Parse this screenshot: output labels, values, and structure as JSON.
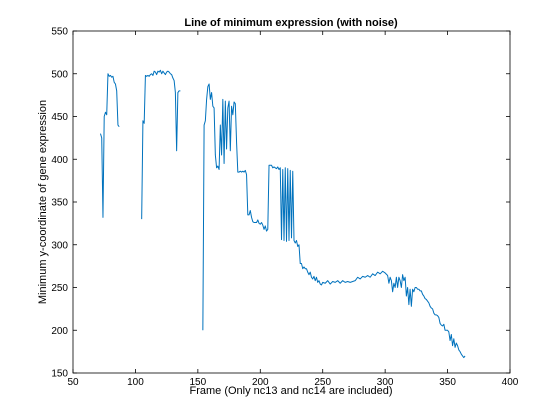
{
  "chart_data": {
    "type": "line",
    "title": "Line of minimum expression (with noise)",
    "xlabel": "Frame (Only nc13 and nc14 are included)",
    "ylabel": "Minimum y-coordinate of gene expression",
    "xlim": [
      50,
      400
    ],
    "ylim": [
      150,
      550
    ],
    "xticks": [
      50,
      100,
      150,
      200,
      250,
      300,
      350,
      400
    ],
    "yticks": [
      150,
      200,
      250,
      300,
      350,
      400,
      450,
      500,
      550
    ],
    "grid": false,
    "line_color": "#0072BD",
    "series": [
      {
        "segments": [
          [
            [
              72,
              430
            ],
            [
              73,
              425
            ],
            [
              74,
              332
            ],
            [
              75,
              450
            ],
            [
              76,
              455
            ],
            [
              77,
              452
            ],
            [
              78,
              500
            ],
            [
              79,
              497
            ],
            [
              80,
              498
            ],
            [
              81,
              496
            ],
            [
              82,
              497
            ],
            [
              83,
              490
            ],
            [
              84,
              488
            ],
            [
              85,
              480
            ],
            [
              86,
              440
            ],
            [
              87,
              438
            ]
          ],
          [
            [
              105,
              330
            ],
            [
              106,
              445
            ],
            [
              107,
              442
            ],
            [
              108,
              498
            ],
            [
              109,
              497
            ],
            [
              110,
              498
            ],
            [
              111,
              497
            ],
            [
              112,
              499
            ],
            [
              113,
              500
            ],
            [
              114,
              498
            ],
            [
              115,
              503
            ],
            [
              116,
              502
            ],
            [
              117,
              499
            ],
            [
              118,
              503
            ],
            [
              119,
              502
            ],
            [
              120,
              504
            ],
            [
              121,
              500
            ],
            [
              122,
              503
            ],
            [
              123,
              501
            ],
            [
              124,
              499
            ],
            [
              125,
              502
            ],
            [
              126,
              503
            ],
            [
              127,
              502
            ],
            [
              128,
              500
            ],
            [
              129,
              499
            ],
            [
              130,
              495
            ],
            [
              131,
              492
            ],
            [
              132,
              478
            ],
            [
              133,
              410
            ],
            [
              134,
              478
            ],
            [
              135,
              480
            ],
            [
              136,
              480
            ]
          ],
          [
            [
              154,
              200
            ],
            [
              155,
              440
            ],
            [
              156,
              445
            ],
            [
              157,
              470
            ],
            [
              158,
              485
            ],
            [
              159,
              488
            ],
            [
              160,
              470
            ],
            [
              161,
              478
            ],
            [
              162,
              462
            ],
            [
              163,
              460
            ],
            [
              164,
              405
            ],
            [
              165,
              390
            ],
            [
              166,
              392
            ],
            [
              167,
              388
            ],
            [
              168,
              440
            ],
            [
              169,
              405
            ],
            [
              170,
              470
            ],
            [
              171,
              395
            ],
            [
              172,
              468
            ],
            [
              173,
              412
            ],
            [
              174,
              460
            ],
            [
              175,
              468
            ],
            [
              176,
              410
            ],
            [
              177,
              462
            ],
            [
              178,
              452
            ],
            [
              179,
              467
            ],
            [
              180,
              465
            ],
            [
              181,
              420
            ],
            [
              182,
              385
            ],
            [
              183,
              385
            ],
            [
              184,
              386
            ],
            [
              185,
              385
            ],
            [
              186,
              386
            ],
            [
              187,
              385
            ],
            [
              188,
              387
            ],
            [
              189,
              382
            ],
            [
              190,
              335
            ],
            [
              191,
              335
            ],
            [
              192,
              340
            ],
            [
              193,
              332
            ],
            [
              194,
              327
            ],
            [
              195,
              326
            ],
            [
              196,
              326
            ],
            [
              197,
              326
            ],
            [
              198,
              329
            ],
            [
              199,
              325
            ],
            [
              200,
              324
            ],
            [
              201,
              326
            ],
            [
              202,
              323
            ],
            [
              203,
              318
            ],
            [
              204,
              322
            ],
            [
              205,
              316
            ],
            [
              206,
              318
            ],
            [
              207,
              393
            ],
            [
              208,
              393
            ],
            [
              209,
              393
            ],
            [
              210,
              390
            ],
            [
              211,
              391
            ],
            [
              212,
              390
            ],
            [
              213,
              389
            ],
            [
              214,
              391
            ],
            [
              215,
              388
            ],
            [
              216,
              390
            ],
            [
              217,
              306
            ],
            [
              218,
              388
            ],
            [
              219,
              305
            ],
            [
              220,
              390
            ],
            [
              221,
              304
            ],
            [
              222,
              389
            ],
            [
              223,
              305
            ],
            [
              224,
              387
            ],
            [
              225,
              308
            ],
            [
              226,
              386
            ],
            [
              227,
              305
            ],
            [
              228,
              302
            ],
            [
              229,
              305
            ],
            [
              230,
              298
            ],
            [
              231,
              300
            ],
            [
              232,
              278
            ],
            [
              233,
              278
            ],
            [
              234,
              272
            ],
            [
              235,
              274
            ],
            [
              236,
              272
            ],
            [
              237,
              272
            ],
            [
              238,
              268
            ],
            [
              239,
              265
            ],
            [
              240,
              268
            ],
            [
              241,
              262
            ],
            [
              242,
              260
            ],
            [
              243,
              263
            ],
            [
              244,
              258
            ],
            [
              245,
              262
            ],
            [
              246,
              256
            ],
            [
              247,
              258
            ],
            [
              248,
              254
            ],
            [
              249,
              253
            ],
            [
              250,
              256
            ],
            [
              252,
              255
            ],
            [
              254,
              258
            ],
            [
              256,
              254
            ],
            [
              258,
              257
            ],
            [
              260,
              256
            ],
            [
              262,
              258
            ],
            [
              264,
              255
            ],
            [
              266,
              258
            ],
            [
              268,
              256
            ],
            [
              270,
              257
            ],
            [
              272,
              256
            ],
            [
              274,
              257
            ],
            [
              276,
              258
            ],
            [
              278,
              262
            ],
            [
              280,
              260
            ],
            [
              282,
              263
            ],
            [
              284,
              262
            ],
            [
              286,
              264
            ],
            [
              288,
              262
            ],
            [
              290,
              266
            ],
            [
              292,
              264
            ],
            [
              294,
              268
            ],
            [
              296,
              266
            ],
            [
              298,
              269
            ],
            [
              300,
              267
            ],
            [
              302,
              264
            ],
            [
              303,
              255
            ],
            [
              304,
              262
            ],
            [
              305,
              258
            ],
            [
              306,
              245
            ],
            [
              307,
              255
            ],
            [
              308,
              250
            ],
            [
              309,
              262
            ],
            [
              310,
              250
            ],
            [
              311,
              262
            ],
            [
              312,
              258
            ],
            [
              313,
              250
            ],
            [
              314,
              265
            ],
            [
              315,
              258
            ],
            [
              316,
              262
            ],
            [
              317,
              240
            ],
            [
              318,
              250
            ],
            [
              319,
              230
            ],
            [
              320,
              248
            ],
            [
              321,
              228
            ],
            [
              322,
              248
            ],
            [
              323,
              245
            ],
            [
              324,
              250
            ],
            [
              325,
              250
            ],
            [
              326,
              248
            ],
            [
              327,
              248
            ],
            [
              328,
              246
            ],
            [
              329,
              246
            ],
            [
              330,
              242
            ],
            [
              331,
              240
            ],
            [
              332,
              237
            ],
            [
              333,
              236
            ],
            [
              334,
              234
            ],
            [
              335,
              232
            ],
            [
              336,
              228
            ],
            [
              337,
              226
            ],
            [
              338,
              225
            ],
            [
              339,
              220
            ],
            [
              340,
              218
            ],
            [
              341,
              218
            ],
            [
              342,
              217
            ],
            [
              343,
              215
            ],
            [
              344,
              208
            ],
            [
              345,
              206
            ],
            [
              346,
              205
            ],
            [
              347,
              207
            ],
            [
              348,
              200
            ],
            [
              349,
              200
            ],
            [
              350,
              200
            ],
            [
              351,
              198
            ],
            [
              352,
              188
            ],
            [
              353,
              195
            ],
            [
              354,
              182
            ],
            [
              355,
              190
            ],
            [
              356,
              180
            ],
            [
              357,
              185
            ],
            [
              358,
              182
            ],
            [
              359,
              177
            ],
            [
              360,
              175
            ],
            [
              361,
              172
            ],
            [
              362,
              170
            ],
            [
              363,
              168
            ],
            [
              364,
              170
            ]
          ]
        ]
      }
    ]
  }
}
